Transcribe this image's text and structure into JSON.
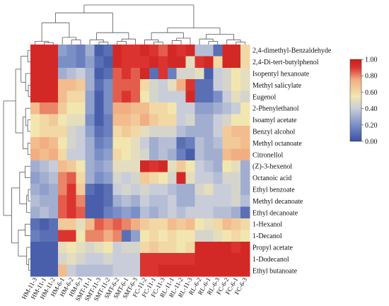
{
  "chart_data": {
    "type": "heatmap",
    "rows": [
      "2,4-dimethyl-Benzaldehyde",
      "2,4-Di-tert-butylphenol",
      "Isopentyl hexanoate",
      "Methyl salicylate",
      "Eugenol",
      "2-Phenylethanol",
      "Isoamyl acetate",
      "Benzyl alcohol",
      "Methyl octanoate",
      "Citronellol",
      "(Z)-3-hexenol",
      "Octanoic acid",
      "Ethyl benzoate",
      "Methyl decanoate",
      "Ethyl decanoate",
      "1-Hexanol",
      "1-Decanol",
      "Propyl acetate",
      "1-Dodecanol",
      "Ethyl butanoate"
    ],
    "columns": [
      "HM-11-3",
      "HM-11-1",
      "HM-11-2",
      "HM-6-1",
      "HM-6-2",
      "HM-6-3",
      "SMT-11-1",
      "SMT-11-3",
      "SMT-11-2",
      "SMT-6-2",
      "SMT-6-1",
      "SMT-6-3",
      "FC-11-2",
      "FC-11-1",
      "FC-11-3",
      "RL-11-1",
      "RL-11-2",
      "RL-11-3",
      "RL-6-2",
      "RL-6-1",
      "RL-6-3",
      "FC-6-2",
      "FC-6-1",
      "FC-6-3"
    ],
    "values": [
      [
        0.95,
        0.95,
        0.95,
        0.25,
        0.2,
        0.15,
        0.3,
        0.05,
        0.1,
        0.95,
        0.9,
        0.9,
        0.95,
        0.9,
        0.85,
        0.95,
        0.9,
        0.95,
        0.35,
        0.35,
        0.1,
        0.95,
        0.95,
        0.6
      ],
      [
        0.95,
        0.95,
        0.95,
        0.2,
        0.2,
        0.15,
        0.25,
        0.1,
        0.05,
        0.95,
        0.9,
        0.9,
        0.9,
        0.95,
        0.9,
        0.95,
        0.95,
        0.5,
        0.9,
        0.95,
        0.6,
        0.95,
        0.95,
        0.6
      ],
      [
        0.95,
        0.95,
        0.95,
        0.3,
        0.35,
        0.4,
        0.3,
        0.05,
        0.1,
        0.85,
        0.9,
        0.85,
        0.95,
        0.1,
        0.9,
        0.15,
        0.45,
        0.45,
        0.5,
        0.05,
        0.4,
        0.45,
        0.55,
        0.5
      ],
      [
        0.95,
        0.95,
        0.95,
        0.7,
        0.7,
        0.65,
        0.3,
        0.1,
        0.2,
        0.85,
        0.85,
        0.85,
        0.6,
        0.45,
        0.4,
        0.5,
        0.75,
        0.9,
        0.1,
        0.1,
        0.4,
        0.45,
        0.55,
        0.5
      ],
      [
        0.95,
        0.95,
        0.95,
        0.7,
        0.6,
        0.6,
        0.25,
        0.05,
        0.2,
        0.85,
        0.9,
        0.85,
        0.55,
        0.45,
        0.4,
        0.4,
        0.4,
        0.95,
        0.1,
        0.1,
        0.2,
        0.4,
        0.5,
        0.45
      ],
      [
        0.7,
        0.8,
        0.8,
        0.65,
        0.55,
        0.55,
        0.25,
        0.05,
        0.2,
        0.75,
        0.75,
        0.7,
        0.7,
        0.6,
        0.6,
        0.55,
        0.4,
        0.4,
        0.25,
        0.25,
        0.3,
        0.35,
        0.4,
        0.55
      ],
      [
        0.55,
        0.6,
        0.65,
        0.55,
        0.5,
        0.5,
        0.2,
        0.05,
        0.15,
        0.7,
        0.7,
        0.65,
        0.75,
        0.65,
        0.6,
        0.6,
        0.4,
        0.45,
        0.3,
        0.3,
        0.4,
        0.45,
        0.55,
        0.55
      ],
      [
        0.55,
        0.6,
        0.6,
        0.6,
        0.45,
        0.4,
        0.25,
        0.1,
        0.15,
        0.6,
        0.65,
        0.6,
        0.5,
        0.45,
        0.45,
        0.45,
        0.35,
        0.3,
        0.3,
        0.3,
        0.4,
        0.65,
        0.7,
        0.7
      ],
      [
        0.7,
        0.75,
        0.7,
        0.55,
        0.45,
        0.4,
        0.3,
        0.15,
        0.2,
        0.55,
        0.55,
        0.5,
        0.4,
        0.3,
        0.35,
        0.35,
        0.1,
        0.15,
        0.35,
        0.3,
        0.35,
        0.65,
        0.65,
        0.7
      ],
      [
        0.75,
        0.7,
        0.75,
        0.6,
        0.4,
        0.4,
        0.3,
        0.2,
        0.25,
        0.6,
        0.55,
        0.5,
        0.45,
        0.3,
        0.35,
        0.3,
        0.15,
        0.05,
        0.35,
        0.3,
        0.3,
        0.7,
        0.75,
        0.75
      ],
      [
        0.3,
        0.35,
        0.4,
        0.7,
        0.65,
        0.55,
        0.3,
        0.25,
        0.3,
        0.5,
        0.5,
        0.5,
        0.95,
        0.9,
        0.95,
        0.5,
        0.65,
        0.55,
        0.4,
        0.35,
        0.3,
        0.55,
        0.5,
        0.3
      ],
      [
        0.25,
        0.3,
        0.35,
        0.8,
        0.85,
        0.6,
        0.3,
        0.2,
        0.25,
        0.45,
        0.4,
        0.45,
        0.65,
        0.6,
        0.55,
        0.45,
        0.95,
        0.5,
        0.4,
        0.4,
        0.35,
        0.45,
        0.45,
        0.3
      ],
      [
        0.3,
        0.25,
        0.3,
        0.8,
        0.9,
        0.65,
        0.1,
        0.05,
        0.1,
        0.4,
        0.45,
        0.4,
        0.45,
        0.4,
        0.4,
        0.35,
        0.3,
        0.3,
        0.45,
        0.5,
        0.4,
        0.4,
        0.45,
        0.3
      ],
      [
        0.35,
        0.3,
        0.3,
        0.85,
        0.9,
        0.8,
        0.05,
        0.05,
        0.1,
        0.3,
        0.35,
        0.3,
        0.4,
        0.35,
        0.35,
        0.4,
        0.3,
        0.3,
        0.4,
        0.4,
        0.4,
        0.4,
        0.45,
        0.35
      ],
      [
        0.3,
        0.35,
        0.3,
        0.85,
        0.9,
        0.85,
        0.05,
        0.05,
        0.15,
        0.2,
        0.25,
        0.2,
        0.35,
        0.3,
        0.35,
        0.4,
        0.35,
        0.4,
        0.4,
        0.4,
        0.35,
        0.35,
        0.3,
        0.1
      ],
      [
        0.1,
        0.05,
        0.1,
        0.65,
        0.65,
        0.5,
        0.7,
        0.85,
        0.8,
        0.85,
        0.8,
        0.75,
        0.65,
        0.6,
        0.6,
        0.7,
        0.65,
        0.7,
        0.55,
        0.5,
        0.6,
        0.7,
        0.65,
        0.6
      ],
      [
        0.15,
        0.1,
        0.1,
        0.9,
        0.9,
        0.55,
        0.8,
        0.8,
        0.75,
        0.8,
        0.1,
        0.25,
        0.55,
        0.6,
        0.55,
        0.6,
        0.55,
        0.55,
        0.45,
        0.45,
        0.5,
        0.55,
        0.6,
        0.55
      ],
      [
        0.05,
        0.05,
        0.05,
        0.5,
        0.55,
        0.5,
        0.45,
        0.5,
        0.55,
        0.4,
        0.45,
        0.45,
        0.6,
        0.65,
        0.6,
        0.6,
        0.55,
        0.6,
        0.95,
        0.95,
        0.95,
        0.95,
        0.9,
        0.95
      ],
      [
        0.05,
        0.05,
        0.05,
        0.45,
        0.5,
        0.45,
        0.4,
        0.4,
        0.45,
        0.4,
        0.4,
        0.4,
        0.9,
        0.9,
        0.9,
        0.9,
        0.9,
        0.9,
        0.95,
        0.95,
        0.95,
        0.95,
        0.95,
        0.95
      ],
      [
        0.05,
        0.05,
        0.05,
        0.7,
        0.4,
        0.35,
        0.35,
        0.35,
        0.35,
        0.4,
        0.4,
        0.4,
        0.9,
        0.9,
        0.95,
        0.95,
        0.95,
        0.95,
        0.95,
        0.95,
        0.95,
        0.95,
        0.95,
        0.95
      ]
    ],
    "colorbar": {
      "min": 0.0,
      "max": 1.0,
      "ticks": [
        "1.00",
        "0.80",
        "0.60",
        "0.40",
        "0.20",
        "0.00"
      ],
      "tick_values": [
        1.0,
        0.8,
        0.6,
        0.4,
        0.2,
        0.0
      ],
      "stops": [
        "#3A4FA3",
        "#7B8FC7",
        "#C8CDD9",
        "#F2E6B0",
        "#F2AE83",
        "#DB3430",
        "#C81E1E"
      ]
    },
    "grid": false,
    "legend_position": "right"
  }
}
